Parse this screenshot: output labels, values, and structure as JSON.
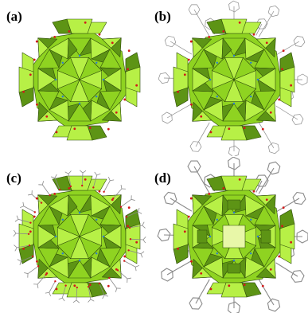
{
  "figure": {
    "panels": [
      {
        "id": "a",
        "label": "(a)",
        "has_ligands": false,
        "ligand_style": "none"
      },
      {
        "id": "b",
        "label": "(b)",
        "has_ligands": true,
        "ligand_style": "phenyl-rings"
      },
      {
        "id": "c",
        "label": "(c)",
        "has_ligands": true,
        "ligand_style": "short-sticks"
      },
      {
        "id": "d",
        "label": "(d)",
        "has_ligands": true,
        "ligand_style": "phenyl-rings-thick"
      }
    ],
    "colors": {
      "polyhedra_light": "#b7f046",
      "polyhedra_mid": "#8fd321",
      "polyhedra_dark": "#5d9415",
      "polyhedra_edge": "#2f4d0a",
      "vertex_red": "#d11a1a",
      "vertex_blue": "#2a7ad6",
      "ligand_gray": "#8a8a8a",
      "window_pale": "#e8f7a8"
    }
  }
}
